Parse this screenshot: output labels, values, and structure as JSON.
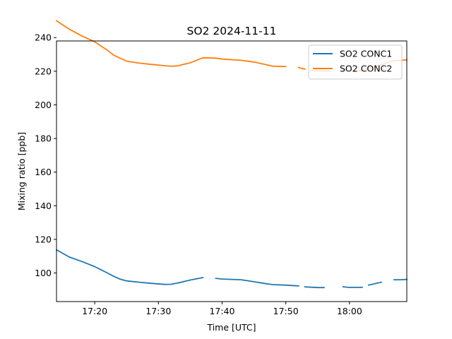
{
  "chart_data": {
    "type": "line",
    "title": "SO2 2024-11-11",
    "xlabel": "Time [UTC]",
    "ylabel": "Mixing ratio [ppb]",
    "xlim": [
      "17:14",
      "18:09"
    ],
    "ylim": [
      83,
      238
    ],
    "x_ticks": [
      "17:20",
      "17:30",
      "17:40",
      "17:50",
      "18:00"
    ],
    "y_ticks": [
      100,
      120,
      140,
      160,
      180,
      200,
      220,
      240
    ],
    "grid": false,
    "legend_position": "top-right",
    "series": [
      {
        "name": "SO2 CONC1",
        "color": "#1f77b4",
        "segments": [
          {
            "x": [
              "17:14",
              "17:16",
              "17:18",
              "17:20",
              "17:22",
              "17:23",
              "17:24",
              "17:25",
              "17:27",
              "17:29",
              "17:31",
              "17:32",
              "17:33",
              "17:35",
              "17:37"
            ],
            "y": [
              113.8,
              109.5,
              106.8,
              103.8,
              100,
              98,
              96.3,
              95.3,
              94.5,
              93.8,
              93.2,
              93.3,
              94,
              95.8,
              97.3
            ]
          },
          {
            "x": [
              "17:39",
              "17:40",
              "17:43",
              "17:45",
              "17:47",
              "17:48",
              "17:50",
              "17:52"
            ],
            "y": [
              96.8,
              96.4,
              96,
              94.8,
              93.6,
              93.1,
              92.8,
              92.3
            ]
          },
          {
            "x": [
              "17:53",
              "17:55",
              "17:56"
            ],
            "y": [
              91.8,
              91.3,
              91.3
            ]
          },
          {
            "x": [
              "17:59",
              "18:00",
              "18:02"
            ],
            "y": [
              91.8,
              91.4,
              91.5
            ]
          },
          {
            "x": [
              "18:03",
              "18:05"
            ],
            "y": [
              92.8,
              94.5
            ]
          },
          {
            "x": [
              "18:07",
              "18:08",
              "18:09"
            ],
            "y": [
              96,
              96,
              96.2
            ]
          }
        ]
      },
      {
        "name": "SO2 CONC2",
        "color": "#ff7f0e",
        "segments": [
          {
            "x": [
              "17:14",
              "17:16",
              "17:18",
              "17:20",
              "17:22",
              "17:23",
              "17:25",
              "17:27",
              "17:29",
              "17:31",
              "17:32",
              "17:33",
              "17:35",
              "17:37",
              "17:39",
              "17:40",
              "17:43",
              "17:45",
              "17:47",
              "17:48",
              "17:50"
            ],
            "y": [
              250,
              245,
              241,
              237.5,
              232.5,
              229.5,
              226,
              224.8,
              224,
              223.3,
              222.9,
              223.2,
              225,
              228,
              227.8,
              227.2,
              226.5,
              225.5,
              223.8,
              223,
              222.8
            ]
          },
          {
            "x": [
              "17:52",
              "17:53"
            ],
            "y": [
              222.2,
              221.3
            ]
          },
          {
            "x": [
              "17:54",
              "17:55",
              "17:56",
              "17:57"
            ],
            "y": [
              220.3,
              220.2,
              220.2,
              220.1
            ]
          },
          {
            "x": [
              "17:59",
              "18:00",
              "18:02",
              "18:03",
              "18:05",
              "18:07",
              "18:08",
              "18:09"
            ],
            "y": [
              220.8,
              220.3,
              220.4,
              221.8,
              223.8,
              226.4,
              226.4,
              226.8
            ]
          }
        ]
      }
    ]
  }
}
